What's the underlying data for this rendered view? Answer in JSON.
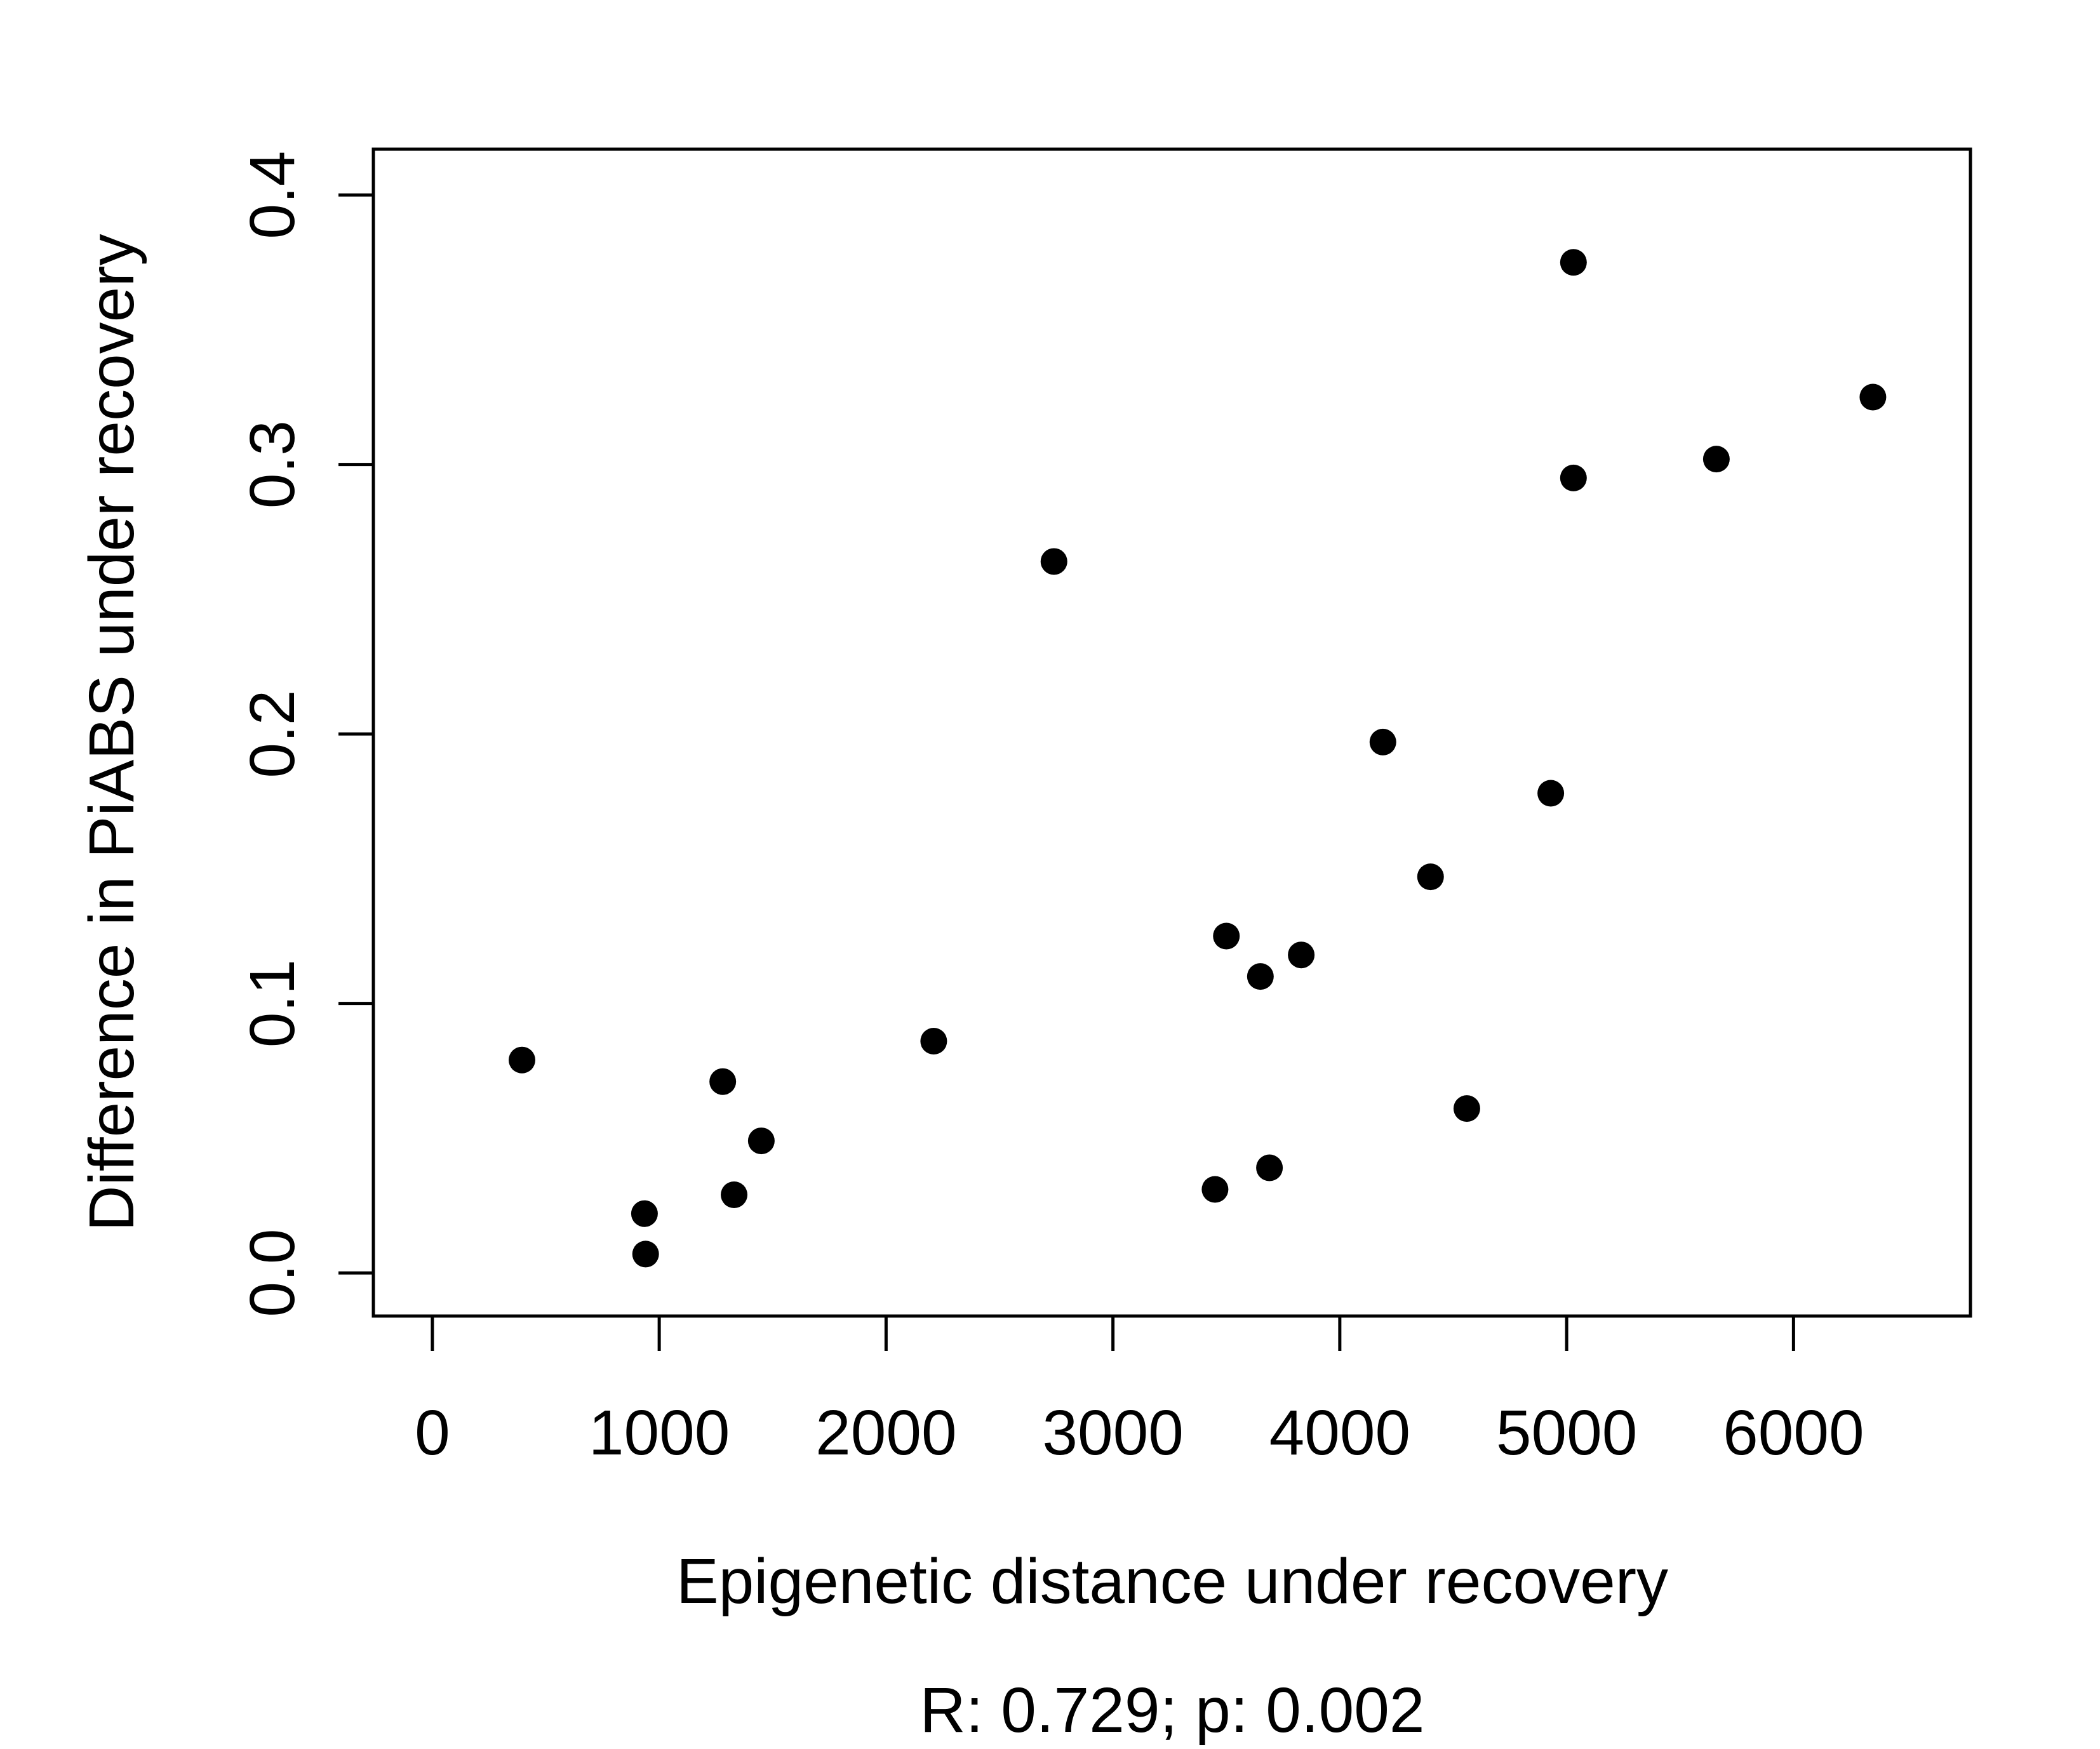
{
  "chart_data": {
    "type": "scatter",
    "title": "",
    "xlabel": "Epigenetic distance under recovery",
    "ylabel": "Difference in PiABS under recovery",
    "annotation": "R: 0.729; p: 0.002",
    "xlim": [
      -260,
      6780
    ],
    "ylim": [
      -0.016,
      0.417
    ],
    "xticks": [
      0,
      1000,
      2000,
      3000,
      4000,
      5000,
      6000
    ],
    "xtick_labels": [
      "0",
      "1000",
      "2000",
      "3000",
      "4000",
      "5000",
      "6000"
    ],
    "yticks": [
      0.0,
      0.1,
      0.2,
      0.3,
      0.4
    ],
    "ytick_labels": [
      "0.0",
      "0.1",
      "0.2",
      "0.3",
      "0.4"
    ],
    "grid": false,
    "legend": "none",
    "marker_color": "#000000",
    "points": [
      {
        "x": 395,
        "y": 0.079
      },
      {
        "x": 935,
        "y": 0.022
      },
      {
        "x": 940,
        "y": 0.007
      },
      {
        "x": 1280,
        "y": 0.071
      },
      {
        "x": 1330,
        "y": 0.029
      },
      {
        "x": 1450,
        "y": 0.049
      },
      {
        "x": 2210,
        "y": 0.086
      },
      {
        "x": 2740,
        "y": 0.264
      },
      {
        "x": 3450,
        "y": 0.031
      },
      {
        "x": 3500,
        "y": 0.125
      },
      {
        "x": 3650,
        "y": 0.11
      },
      {
        "x": 3690,
        "y": 0.039
      },
      {
        "x": 3830,
        "y": 0.118
      },
      {
        "x": 4190,
        "y": 0.197
      },
      {
        "x": 4400,
        "y": 0.147
      },
      {
        "x": 4560,
        "y": 0.061
      },
      {
        "x": 4930,
        "y": 0.178
      },
      {
        "x": 5030,
        "y": 0.375
      },
      {
        "x": 5030,
        "y": 0.295
      },
      {
        "x": 5660,
        "y": 0.302
      },
      {
        "x": 6350,
        "y": 0.325
      }
    ]
  }
}
